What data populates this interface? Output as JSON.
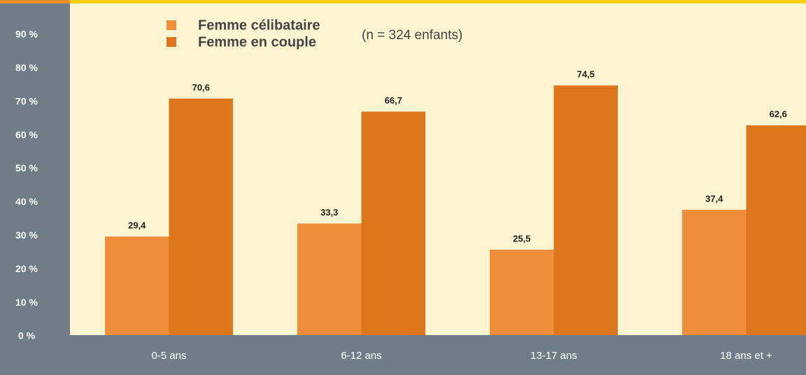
{
  "chart_data": {
    "type": "bar",
    "categories": [
      "0-5 ans",
      "6-12 ans",
      "13-17 ans",
      "18 ans et +"
    ],
    "series": [
      {
        "name": "Femme célibataire",
        "color": "#ee8e3a",
        "values": [
          29.4,
          33.3,
          25.5,
          37.4
        ],
        "value_labels": [
          "29,4",
          "33,3",
          "25,5",
          "37,4"
        ]
      },
      {
        "name": "Femme en couple",
        "color": "#de761c",
        "values": [
          70.6,
          66.7,
          74.5,
          62.6
        ],
        "value_labels": [
          "70,6",
          "66,7",
          "74,5",
          "62,6"
        ]
      }
    ],
    "annotation": "(n = 324 enfants)",
    "ylim": [
      0,
      100
    ],
    "yticks": [
      {
        "value": 0,
        "label": "0 %"
      },
      {
        "value": 10,
        "label": "10 %"
      },
      {
        "value": 20,
        "label": "20 %"
      },
      {
        "value": 30,
        "label": "30 %"
      },
      {
        "value": 40,
        "label": "40 %"
      },
      {
        "value": 50,
        "label": "50 %"
      },
      {
        "value": 60,
        "label": "60 %"
      },
      {
        "value": 70,
        "label": "70 %"
      },
      {
        "value": 80,
        "label": "80 %"
      },
      {
        "value": 90,
        "label": "90 %"
      }
    ],
    "grid": false
  }
}
